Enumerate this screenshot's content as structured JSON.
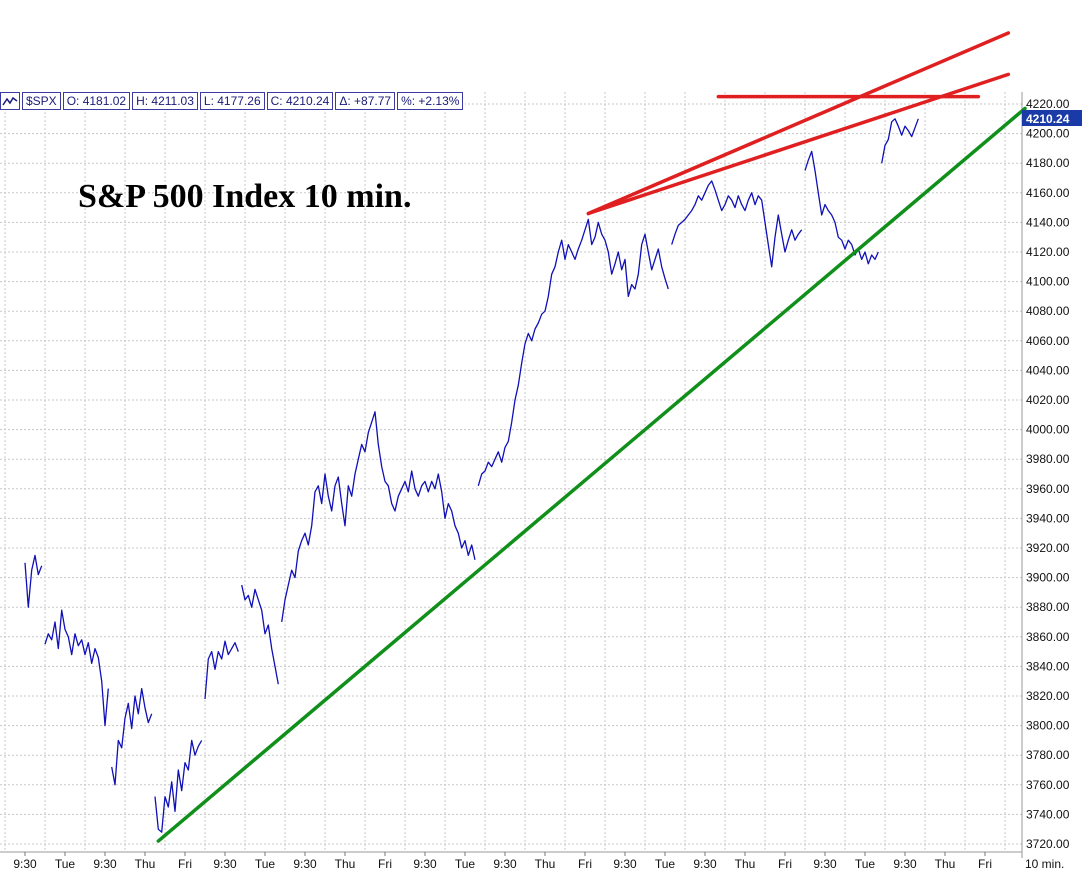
{
  "header": {
    "symbol": "$SPX",
    "open": "O: 4181.02",
    "high": "H: 4211.03",
    "low": "L: 4177.26",
    "close": "C: 4210.24",
    "change": "Δ: +87.77",
    "percent": "%: +2.13%"
  },
  "chart_data": {
    "type": "line",
    "title": "S&P 500 Index 10 min.",
    "interval_label": "10 min.",
    "last_value_label": "4210.24",
    "ylim": [
      3715,
      4225
    ],
    "y_ticks": [
      3720,
      3740,
      3760,
      3780,
      3800,
      3820,
      3840,
      3860,
      3880,
      3900,
      3920,
      3940,
      3960,
      3980,
      4000,
      4020,
      4040,
      4060,
      4080,
      4100,
      4120,
      4140,
      4160,
      4180,
      4200,
      4220
    ],
    "y_tick_labels": [
      "3720.00",
      "3740.00",
      "3760.00",
      "3780.00",
      "3800.00",
      "3820.00",
      "3840.00",
      "3860.00",
      "3880.00",
      "3900.00",
      "3920.00",
      "3940.00",
      "3960.00",
      "3980.00",
      "4000.00",
      "4020.00",
      "4040.00",
      "4060.00",
      "4080.00",
      "4100.00",
      "4120.00",
      "4140.00",
      "4160.00",
      "4180.00",
      "4200.00",
      "4220.00"
    ],
    "x_tick_labels": [
      "9:30",
      "Tue",
      "9:30",
      "Thu",
      "Fri",
      "9:30",
      "Tue",
      "9:30",
      "Thu",
      "Fri",
      "9:30",
      "Tue",
      "9:30",
      "Thu",
      "Fri",
      "9:30",
      "Tue",
      "9:30",
      "Thu",
      "Fri",
      "9:30",
      "Tue",
      "9:30",
      "Thu",
      "Fri"
    ],
    "grid": true,
    "series": [
      {
        "color": "#1010b8",
        "segments": [
          {
            "x0": 0,
            "values": [
              3910,
              3880,
              3905,
              3915,
              3902,
              3908
            ]
          },
          {
            "x0": 6,
            "values": [
              3855,
              3862,
              3858,
              3870,
              3852,
              3878,
              3865,
              3860,
              3848,
              3862,
              3854,
              3858,
              3848,
              3856,
              3842,
              3852,
              3846,
              3830,
              3800,
              3825
            ]
          },
          {
            "x0": 26,
            "values": [
              3772,
              3760,
              3790,
              3785,
              3805,
              3815,
              3798,
              3820,
              3808,
              3825,
              3812,
              3802,
              3808
            ]
          },
          {
            "x0": 39,
            "values": [
              3752,
              3730,
              3728,
              3752,
              3745,
              3762,
              3742,
              3770,
              3756,
              3775,
              3770,
              3790,
              3780,
              3786,
              3790
            ]
          },
          {
            "x0": 54,
            "values": [
              3818,
              3845,
              3850,
              3838,
              3850,
              3845,
              3857,
              3848,
              3852,
              3856,
              3850
            ]
          },
          {
            "x0": 65,
            "values": [
              3895,
              3885,
              3888,
              3880,
              3892,
              3885,
              3878,
              3862,
              3868,
              3852,
              3840,
              3828
            ]
          },
          {
            "x0": 77,
            "values": [
              3870,
              3885,
              3895,
              3905,
              3900,
              3918,
              3925,
              3930,
              3922,
              3935,
              3958,
              3962,
              3950,
              3970,
              3955,
              3945,
              3962,
              3968,
              3950,
              3935,
              3962,
              3955,
              3970,
              3980,
              3990,
              3985,
              3998,
              4005,
              4012,
              3990,
              3975,
              3965,
              3962,
              3950,
              3945,
              3955,
              3960,
              3965,
              3958,
              3972,
              3960,
              3955,
              3962,
              3965,
              3958,
              3965,
              3960,
              3970,
              3958,
              3940,
              3950,
              3945,
              3935,
              3930,
              3920,
              3925,
              3915,
              3922,
              3912
            ]
          },
          {
            "x0": 136,
            "values": [
              3962,
              3970,
              3972,
              3978,
              3975,
              3980,
              3985,
              3978,
              3988,
              3992,
              4005,
              4020,
              4030,
              4045,
              4058,
              4065,
              4060,
              4068,
              4072,
              4078,
              4080,
              4090,
              4105,
              4110,
              4120,
              4128,
              4115,
              4125,
              4120,
              4115,
              4122,
              4128,
              4135,
              4142,
              4125,
              4130,
              4140,
              4132,
              4128,
              4120,
              4105,
              4112,
              4120,
              4108,
              4115,
              4090,
              4098,
              4095,
              4105,
              4125,
              4132,
              4120,
              4108,
              4115,
              4122,
              4110,
              4102,
              4095
            ]
          },
          {
            "x0": 194,
            "values": [
              4125,
              4132,
              4138,
              4140,
              4142,
              4145,
              4148,
              4152,
              4158,
              4155,
              4160,
              4165,
              4168,
              4162,
              4155,
              4148,
              4152,
              4158,
              4155,
              4150,
              4158,
              4152,
              4148,
              4155,
              4160,
              4152,
              4158,
              4155,
              4140,
              4125,
              4110,
              4130,
              4145,
              4132,
              4120,
              4128,
              4135,
              4128,
              4132,
              4135
            ]
          },
          {
            "x0": 234,
            "values": [
              4175,
              4182,
              4188,
              4175,
              4160,
              4145,
              4152,
              4148,
              4145,
              4140,
              4130,
              4128,
              4122,
              4128,
              4125,
              4118,
              4122,
              4115,
              4120,
              4112,
              4118,
              4115,
              4120
            ]
          },
          {
            "x0": 257,
            "values": [
              4180,
              4192,
              4196,
              4208,
              4210,
              4205,
              4199,
              4205,
              4202,
              4198,
              4204,
              4210
            ]
          }
        ]
      }
    ],
    "trendlines": [
      {
        "color": "#10901a",
        "points": [
          [
            40,
            3722
          ],
          [
            300,
            4217
          ]
        ]
      },
      {
        "color": "#e02020",
        "points": [
          [
            169,
            4146
          ],
          [
            295,
            4240
          ]
        ]
      },
      {
        "color": "#e02020",
        "points": [
          [
            169,
            4146
          ],
          [
            295,
            4268
          ]
        ]
      },
      {
        "color": "#e02020",
        "points": [
          [
            208,
            4225
          ],
          [
            286,
            4225
          ]
        ]
      }
    ]
  }
}
